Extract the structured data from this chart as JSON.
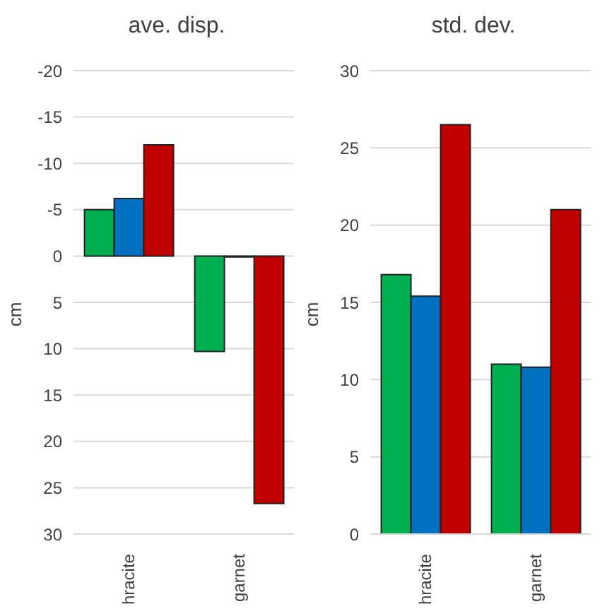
{
  "chart_data": [
    {
      "type": "bar",
      "title": "ave. disp.",
      "ylabel": "cm",
      "categories": [
        "hracite",
        "garnet"
      ],
      "series": [
        {
          "color": "#00b050",
          "values": [
            -5,
            10.3
          ]
        },
        {
          "color": "#0070c0",
          "values": [
            -6.2,
            0.1
          ]
        },
        {
          "color": "#c00000",
          "values": [
            -12,
            26.7
          ]
        }
      ],
      "ylim": [
        30,
        -20
      ],
      "yticks": [
        -20,
        -15,
        -10,
        -5,
        0,
        5,
        10,
        15,
        20,
        25,
        30
      ],
      "grid": "y",
      "legend": false
    },
    {
      "type": "bar",
      "title": "std. dev.",
      "ylabel": "cm",
      "categories": [
        "hracite",
        "garnet"
      ],
      "series": [
        {
          "color": "#00b050",
          "values": [
            16.8,
            11
          ]
        },
        {
          "color": "#0070c0",
          "values": [
            15.4,
            10.8
          ]
        },
        {
          "color": "#c00000",
          "values": [
            26.5,
            21
          ]
        }
      ],
      "ylim": [
        0,
        30
      ],
      "yticks": [
        0,
        5,
        10,
        15,
        20,
        25,
        30
      ],
      "grid": "y",
      "legend": false
    }
  ]
}
